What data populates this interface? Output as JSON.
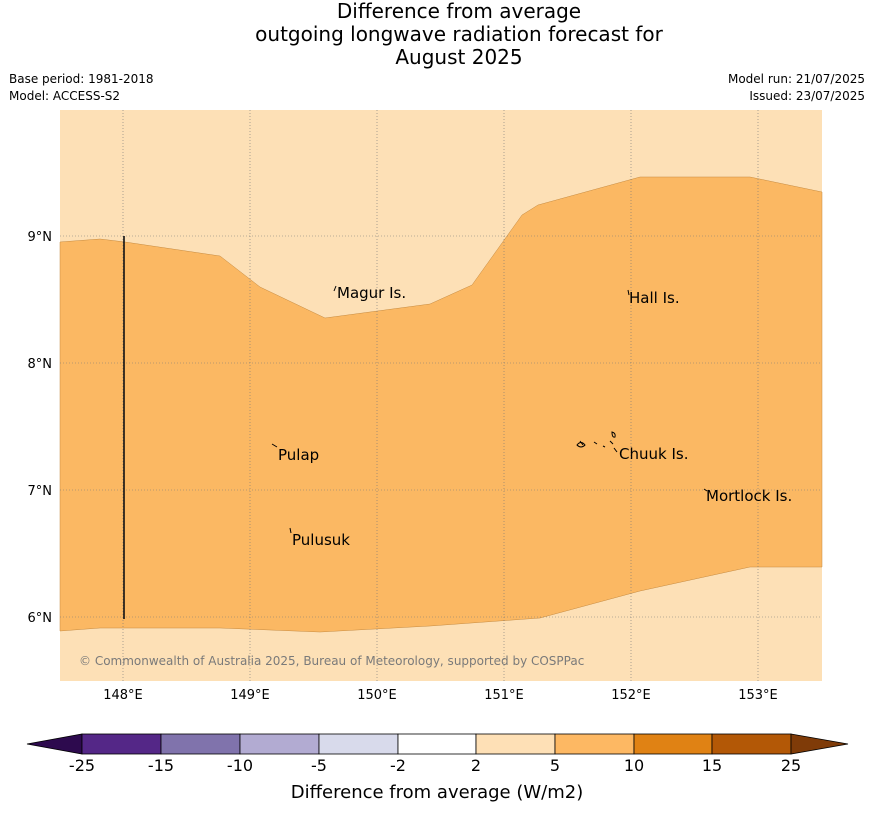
{
  "title": {
    "line1": "Difference from average",
    "line2": "outgoing longwave radiation forecast for",
    "line3": "August 2025"
  },
  "meta": {
    "base_period": "Base period: 1981-2018",
    "model": "Model: ACCESS-S2",
    "model_run": "Model run: 21/07/2025",
    "issued": "Issued: 23/07/2025"
  },
  "map": {
    "lon_labels": [
      "148°E",
      "149°E",
      "150°E",
      "151°E",
      "152°E",
      "153°E"
    ],
    "lat_labels": [
      "9°N",
      "8°N",
      "7°N",
      "6°N"
    ],
    "places": [
      "Magur Is.",
      "Hall Is.",
      "Pulap",
      "Chuuk Is.",
      "Mortlock Is.",
      "Pulusuk"
    ],
    "copyright": "© Commonwealth of Australia 2025, Bureau of Meteorology, supported by COSPPac",
    "fill_colors": {
      "band_2_5": "#fde0b6",
      "band_5_10": "#fbb863"
    }
  },
  "legend": {
    "title": "Difference from average (W/m2)",
    "ticks": [
      "-25",
      "-15",
      "-10",
      "-5",
      "-2",
      "2",
      "5",
      "10",
      "15",
      "25"
    ],
    "colors": [
      "#2d0a4e",
      "#542787",
      "#8073ac",
      "#b2abd2",
      "#d8daeb",
      "#ffffff",
      "#fee0b6",
      "#fdb863",
      "#e08214",
      "#b35806",
      "#7f3b08"
    ]
  }
}
